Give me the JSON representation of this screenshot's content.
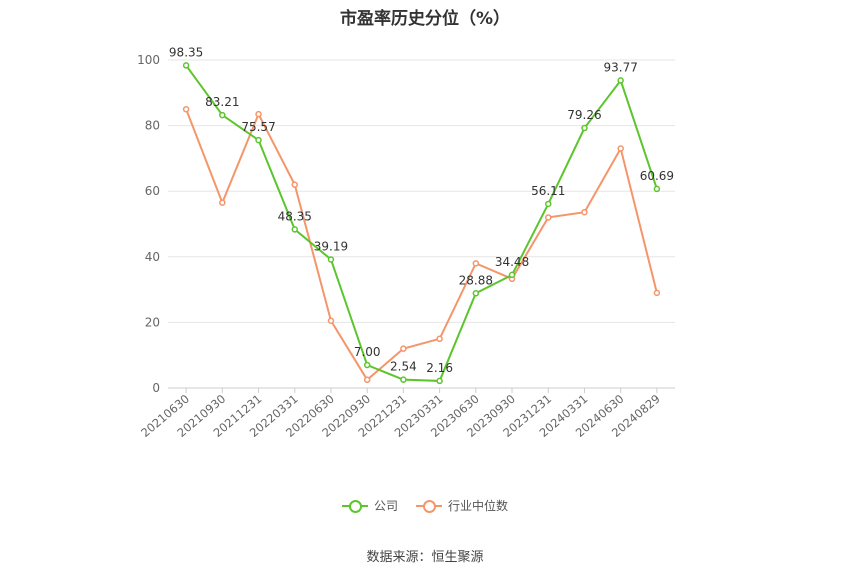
{
  "title": "市盈率历史分位（%）",
  "source": "数据来源：恒生聚源",
  "colors": {
    "company": "#5cc52d",
    "industry": "#f4956a",
    "grid": "#e6e6e6",
    "axis": "#999999"
  },
  "chart_data": {
    "type": "line",
    "title": "市盈率历史分位（%）",
    "categories": [
      "20210630",
      "20210930",
      "20211231",
      "20220331",
      "20220630",
      "20220930",
      "20221231",
      "20230331",
      "20230630",
      "20230930",
      "20231231",
      "20240331",
      "20240630",
      "20240829"
    ],
    "ylim": [
      0,
      100
    ],
    "yticks": [
      0,
      20,
      40,
      60,
      80,
      100
    ],
    "grid": true,
    "legend_position": "bottom",
    "series": [
      {
        "name": "公司",
        "color": "#5cc52d",
        "show_labels": true,
        "values": [
          98.35,
          83.21,
          75.57,
          48.35,
          39.19,
          7.0,
          2.54,
          2.16,
          28.88,
          34.48,
          56.11,
          79.26,
          93.77,
          60.69
        ]
      },
      {
        "name": "行业中位数",
        "color": "#f4956a",
        "show_labels": false,
        "values": [
          85,
          56.5,
          83.5,
          62,
          20.5,
          2.5,
          12,
          15,
          38,
          33.3,
          52,
          53.6,
          73,
          29
        ]
      }
    ]
  }
}
